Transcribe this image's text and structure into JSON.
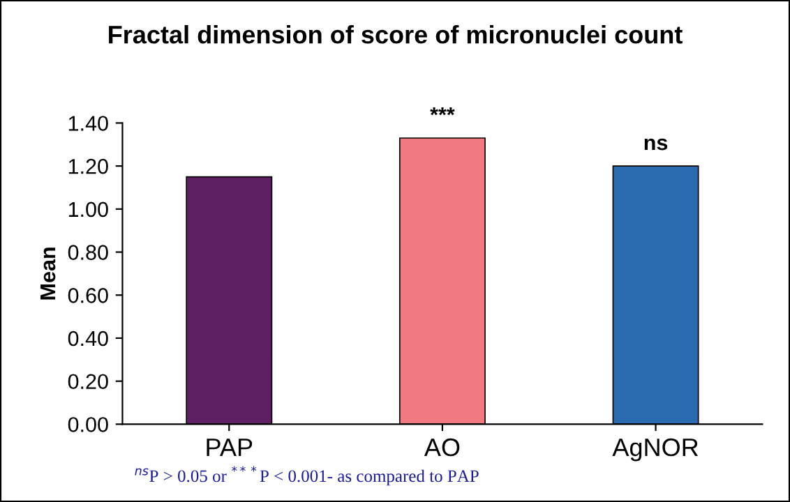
{
  "chart_data": {
    "type": "bar",
    "title": "Fractal dimension of score of micronuclei count",
    "ylabel": "Mean",
    "categories": [
      "PAP",
      "AO",
      "AgNOR"
    ],
    "values": [
      1.15,
      1.33,
      1.2
    ],
    "colors": [
      "#5f1f63",
      "#f07a80",
      "#2a6ab0"
    ],
    "ylim": [
      0,
      1.4
    ],
    "yticks": [
      {
        "value": 0,
        "label": "0.00"
      },
      {
        "value": 0.2,
        "label": "0.20"
      },
      {
        "value": 0.4,
        "label": "0.40"
      },
      {
        "value": 0.6,
        "label": "0.60"
      },
      {
        "value": 0.8,
        "label": "0.80"
      },
      {
        "value": 1.0,
        "label": "1.00"
      },
      {
        "value": 1.2,
        "label": "1.20"
      },
      {
        "value": 1.4,
        "label": "1.40"
      }
    ],
    "grid": false,
    "legend": false,
    "annotations": [
      {
        "text": "***",
        "x": "AO",
        "y": 1.33
      },
      {
        "text": "ns",
        "x": "AgNOR",
        "y": 1.2
      },
      "$^{ns}$P > 0.05 or $^{***}$P < 0.001- as compared to PAP"
    ]
  }
}
